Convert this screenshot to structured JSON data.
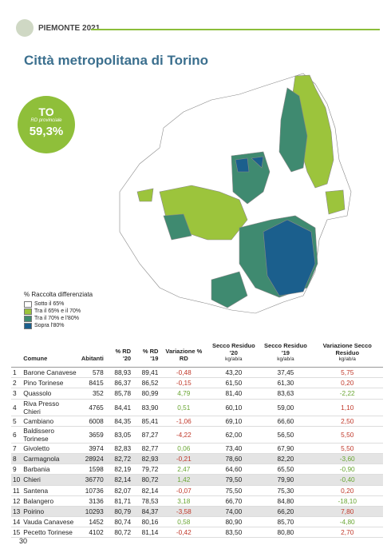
{
  "header": {
    "publication": "PIEMONTE 2021"
  },
  "title": "Città metropolitana di Torino",
  "badge": {
    "code": "TO",
    "label": "RD provinciale",
    "value": "59,3%"
  },
  "legend": {
    "title": "% Raccolta differenziata",
    "items": [
      {
        "label": "Sotto il 65%",
        "color": "#ffffff"
      },
      {
        "label": "Tra il 65% e il 70%",
        "color": "#9cc43c"
      },
      {
        "label": "Tra il 70% e l'80%",
        "color": "#3f8a70"
      },
      {
        "label": "Sopra l'80%",
        "color": "#1b5f8d"
      }
    ]
  },
  "table": {
    "columns": [
      {
        "label": "Comune"
      },
      {
        "label": "Abitanti"
      },
      {
        "label": "% RD '20"
      },
      {
        "label": "% RD '19"
      },
      {
        "label": "Variazione % RD"
      },
      {
        "label": "Secco Residuo '20",
        "unit": "kg/ab/a"
      },
      {
        "label": "Secco Residuo '19",
        "unit": "kg/ab/a"
      },
      {
        "label": "Variazione Secco Residuo",
        "unit": "kg/ab/a"
      }
    ],
    "rows": [
      [
        "1",
        "Barone Canavese",
        "578",
        "88,93",
        "89,41",
        "-0,48",
        "43,20",
        "37,45",
        "5,75"
      ],
      [
        "2",
        "Pino Torinese",
        "8415",
        "86,37",
        "86,52",
        "-0,15",
        "61,50",
        "61,30",
        "0,20"
      ],
      [
        "3",
        "Quassolo",
        "352",
        "85,78",
        "80,99",
        "4,79",
        "81,40",
        "83,63",
        "-2,22"
      ],
      [
        "4",
        "Riva Presso Chieri",
        "4765",
        "84,41",
        "83,90",
        "0,51",
        "60,10",
        "59,00",
        "1,10"
      ],
      [
        "5",
        "Cambiano",
        "6008",
        "84,35",
        "85,41",
        "-1,06",
        "69,10",
        "66,60",
        "2,50"
      ],
      [
        "6",
        "Baldissero Torinese",
        "3659",
        "83,05",
        "87,27",
        "-4,22",
        "62,00",
        "56,50",
        "5,50"
      ],
      [
        "7",
        "Givoletto",
        "3974",
        "82,83",
        "82,77",
        "0,06",
        "73,40",
        "67,90",
        "5,50"
      ],
      [
        "8",
        "Carmagnola",
        "28924",
        "82,72",
        "82,93",
        "-0,21",
        "78,60",
        "82,20",
        "-3,60"
      ],
      [
        "9",
        "Barbania",
        "1598",
        "82,19",
        "79,72",
        "2,47",
        "64,60",
        "65,50",
        "-0,90"
      ],
      [
        "10",
        "Chieri",
        "36770",
        "82,14",
        "80,72",
        "1,42",
        "79,50",
        "79,90",
        "-0,40"
      ],
      [
        "11",
        "Santena",
        "10736",
        "82,07",
        "82,14",
        "-0,07",
        "75,50",
        "75,30",
        "0,20"
      ],
      [
        "12",
        "Balangero",
        "3136",
        "81,71",
        "78,53",
        "3,18",
        "66,70",
        "84,80",
        "-18,10"
      ],
      [
        "13",
        "Poirino",
        "10293",
        "80,79",
        "84,37",
        "-3,58",
        "74,00",
        "66,20",
        "7,80"
      ],
      [
        "14",
        "Vauda Canavese",
        "1452",
        "80,74",
        "80,16",
        "0,58",
        "80,90",
        "85,70",
        "-4,80"
      ],
      [
        "15",
        "Pecetto Torinese",
        "4102",
        "80,72",
        "81,14",
        "-0,42",
        "83,50",
        "80,80",
        "2,70"
      ]
    ],
    "shaded_rows": [
      7,
      9,
      12
    ]
  },
  "page_number": "30"
}
